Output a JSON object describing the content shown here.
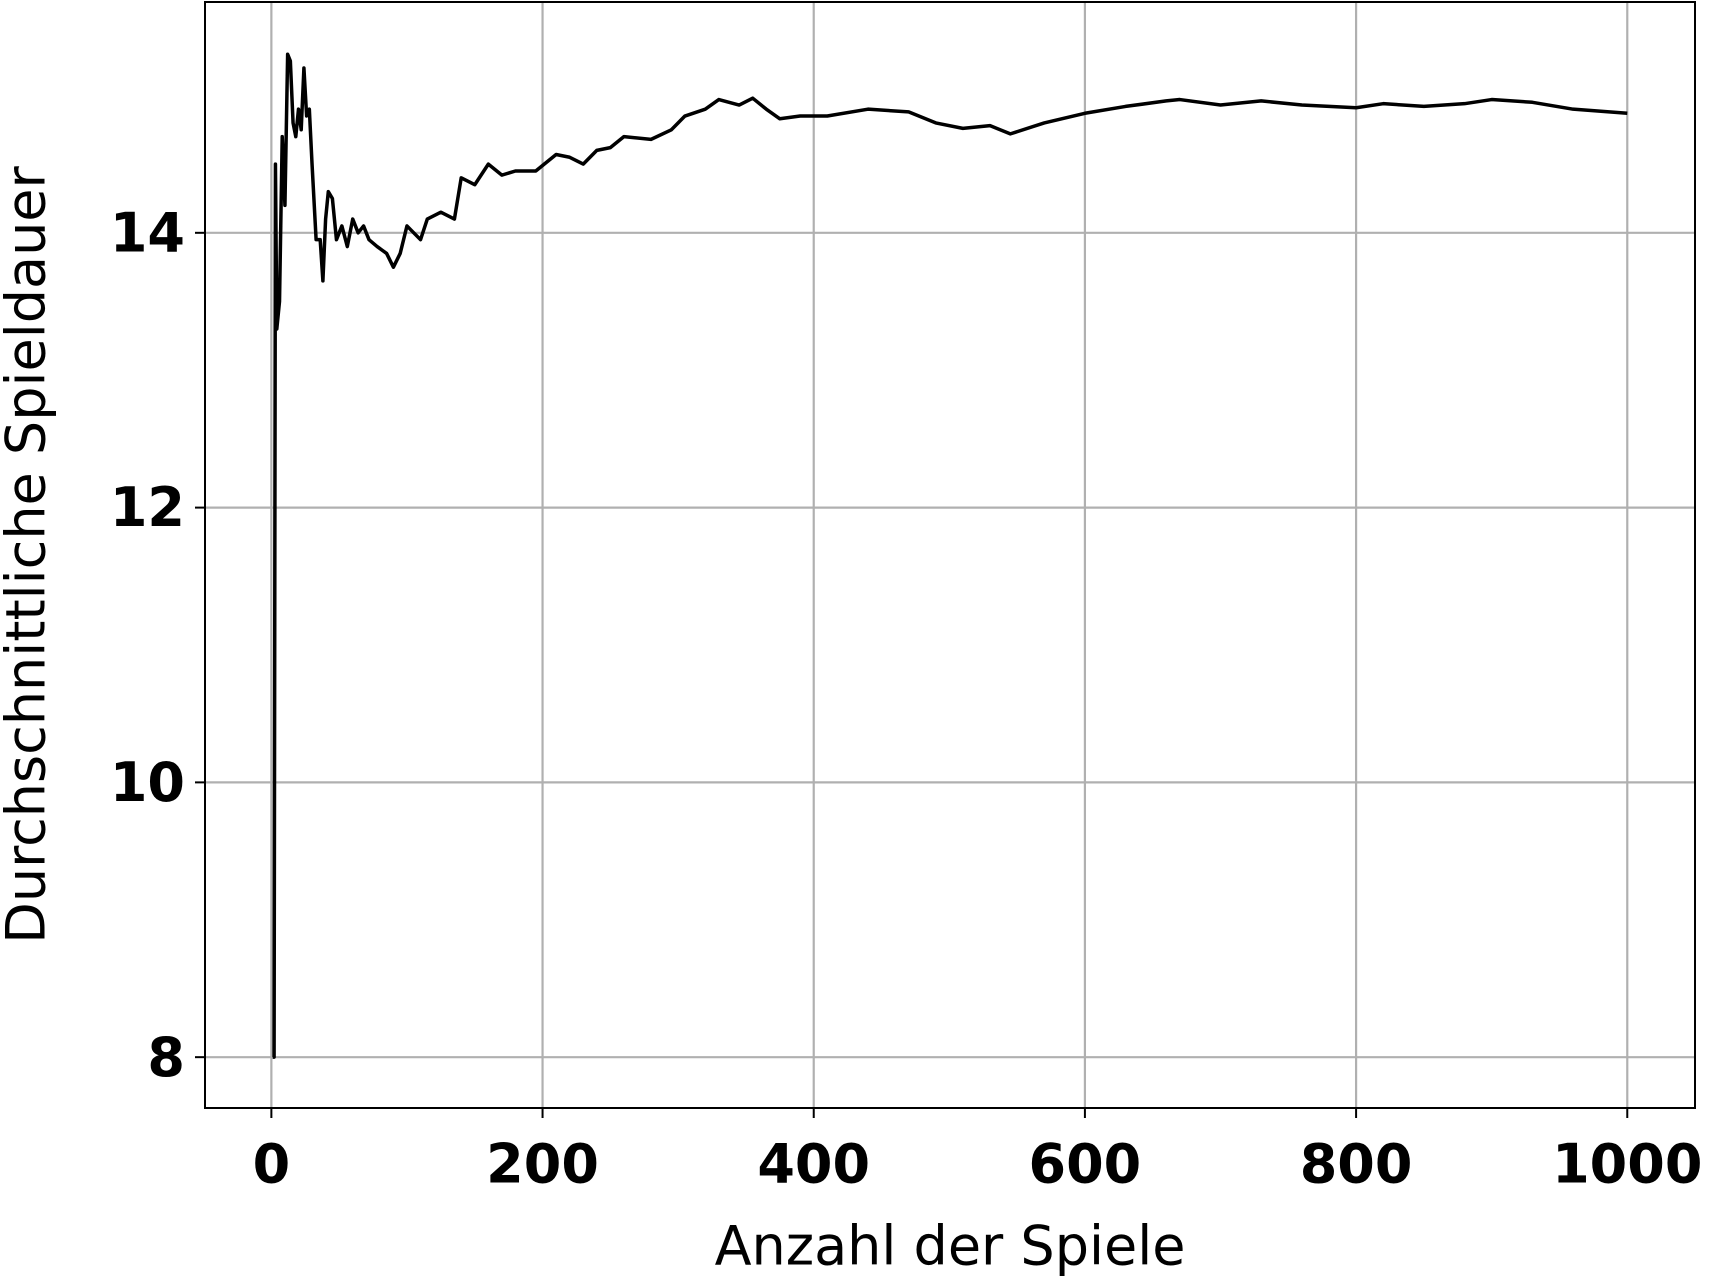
{
  "chart_data": {
    "type": "line",
    "xlabel": "Anzahl der Spiele",
    "ylabel": "Durchschnittliche Spieldauer",
    "x": [
      1,
      2,
      3,
      4,
      6,
      8,
      10,
      12,
      14,
      16,
      18,
      20,
      22,
      24,
      26,
      28,
      30,
      33,
      36,
      38,
      40,
      42,
      45,
      48,
      52,
      56,
      60,
      64,
      68,
      72,
      78,
      85,
      90,
      95,
      100,
      110,
      115,
      125,
      135,
      140,
      150,
      160,
      170,
      180,
      195,
      210,
      220,
      230,
      240,
      250,
      260,
      280,
      295,
      305,
      320,
      330,
      345,
      355,
      365,
      375,
      390,
      410,
      440,
      470,
      490,
      510,
      530,
      545,
      570,
      600,
      630,
      660,
      670,
      700,
      730,
      760,
      800,
      820,
      850,
      880,
      900,
      930,
      960,
      1000
    ],
    "series": [
      {
        "name": "Durchschnittliche Spieldauer",
        "color": "#000000",
        "values": [
          8,
          8,
          14.5,
          13.3,
          13.5,
          14.7,
          14.2,
          15.3,
          15.25,
          14.8,
          14.7,
          14.9,
          14.75,
          15.2,
          14.85,
          14.9,
          14.5,
          13.95,
          13.95,
          13.65,
          14.1,
          14.3,
          14.25,
          13.95,
          14.05,
          13.9,
          14.1,
          14.0,
          14.05,
          13.95,
          13.9,
          13.85,
          13.75,
          13.85,
          14.05,
          13.95,
          14.1,
          14.15,
          14.1,
          14.4,
          14.35,
          14.5,
          14.42,
          14.45,
          14.45,
          14.57,
          14.55,
          14.5,
          14.6,
          14.62,
          14.7,
          14.68,
          14.75,
          14.85,
          14.9,
          14.97,
          14.93,
          14.98,
          14.9,
          14.83,
          14.85,
          14.85,
          14.9,
          14.88,
          14.8,
          14.76,
          14.78,
          14.72,
          14.8,
          14.87,
          14.92,
          14.96,
          14.97,
          14.93,
          14.96,
          14.93,
          14.91,
          14.94,
          14.92,
          14.94,
          14.97,
          14.95,
          14.9,
          14.87
        ]
      }
    ],
    "xlim": [
      -48.95,
      1049.95
    ],
    "xticks": [
      0,
      200,
      400,
      600,
      800,
      1000
    ],
    "ylim": [
      7.63,
      15.68
    ],
    "yticks": [
      8,
      10,
      12,
      14
    ],
    "grid": true
  }
}
